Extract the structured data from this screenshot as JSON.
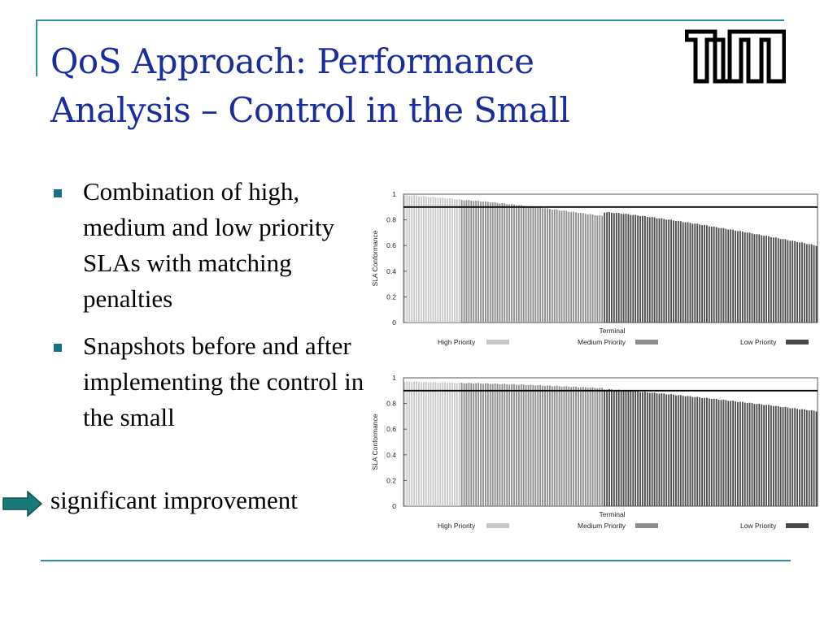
{
  "slide": {
    "title": "QoS Approach: Performance Analysis – Control in the Small",
    "bullets": [
      "Combination of high, medium and low priority SLAs with matching penalties",
      "Snapshots before and after implementing the control in the small"
    ],
    "conclusion": "significant improvement",
    "logo_icon": "tum-logo-icon",
    "arrow_icon": "arrow-right-icon",
    "colors": {
      "title": "#1a2c9e",
      "rule": "#2e8fa8",
      "bullet": "#1a6f86",
      "arrow": "#1a7a7a"
    }
  },
  "chart_data": [
    {
      "type": "bar",
      "title": "",
      "xlabel": "Terminal",
      "ylabel": "SLA Conformance",
      "ylim": [
        0,
        1
      ],
      "yticks": [
        "0",
        "0.2",
        "0.4",
        "0.6",
        "0.8",
        "1"
      ],
      "threshold": 0.9,
      "legend_position": "bottom",
      "series": [
        {
          "name": "High Priority",
          "color": "#c8c8c8",
          "count": 24,
          "start": 0.99,
          "end": 0.96
        },
        {
          "name": "Medium Priority",
          "color": "#8c8c8c",
          "count": 60,
          "start": 0.955,
          "end": 0.83
        },
        {
          "name": "Low Priority",
          "color": "#4a4a4a",
          "count": 90,
          "start": 0.86,
          "end": 0.6
        }
      ]
    },
    {
      "type": "bar",
      "title": "",
      "xlabel": "Terminal",
      "ylabel": "SLA Conformance",
      "ylim": [
        0,
        1
      ],
      "yticks": [
        "0",
        "0.2",
        "0.4",
        "0.6",
        "0.8",
        "1"
      ],
      "threshold": 0.9,
      "legend_position": "bottom",
      "series": [
        {
          "name": "High Priority",
          "color": "#c8c8c8",
          "count": 24,
          "start": 0.97,
          "end": 0.96
        },
        {
          "name": "Medium Priority",
          "color": "#8c8c8c",
          "count": 60,
          "start": 0.96,
          "end": 0.92
        },
        {
          "name": "Low Priority",
          "color": "#4a4a4a",
          "count": 90,
          "start": 0.91,
          "end": 0.74
        }
      ]
    }
  ]
}
